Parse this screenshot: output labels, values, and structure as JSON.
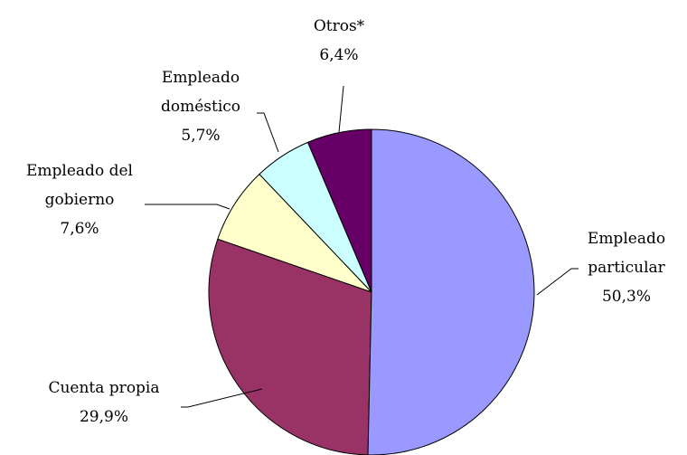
{
  "chart_data": {
    "type": "pie",
    "categories": [
      "Empleado particular",
      "Cuenta propia",
      "Empleado del gobierno",
      "Empleado doméstico",
      "Otros*"
    ],
    "values": [
      50.3,
      29.9,
      7.6,
      5.7,
      6.4
    ],
    "value_labels": [
      "50,3%",
      "29,9%",
      "7,6%",
      "5,7%",
      "6,4%"
    ],
    "colors": [
      "#9999ff",
      "#993366",
      "#ffffcc",
      "#ccffff",
      "#660066"
    ]
  }
}
